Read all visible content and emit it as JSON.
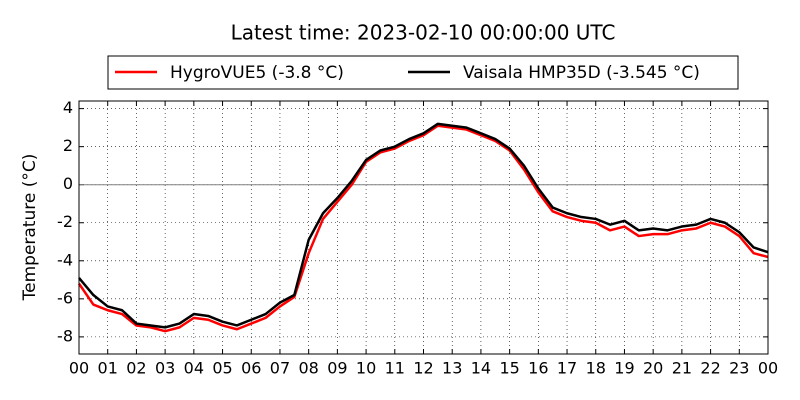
{
  "chart_data": {
    "type": "line",
    "title": "Latest time: 2023-02-10 00:00:00 UTC",
    "ylabel": "Temperature (°C)",
    "x": [
      0,
      0.5,
      1,
      1.5,
      2,
      2.5,
      3,
      3.5,
      4,
      4.5,
      5,
      5.5,
      6,
      6.5,
      7,
      7.5,
      8,
      8.5,
      9,
      9.5,
      10,
      10.5,
      11,
      11.5,
      12,
      12.5,
      13,
      13.5,
      14,
      14.5,
      15,
      15.5,
      16,
      16.5,
      17,
      17.5,
      18,
      18.5,
      19,
      19.5,
      20,
      20.5,
      21,
      21.5,
      22,
      22.5,
      23,
      23.5,
      24
    ],
    "series": [
      {
        "name": "HygroVUE5 (-3.8 °C)",
        "color": "#ff0000",
        "values": [
          -5.2,
          -6.3,
          -6.6,
          -6.8,
          -7.4,
          -7.5,
          -7.7,
          -7.5,
          -7.0,
          -7.1,
          -7.4,
          -7.6,
          -7.3,
          -7.0,
          -6.4,
          -5.9,
          -3.6,
          -1.8,
          -0.9,
          0.0,
          1.2,
          1.7,
          1.9,
          2.3,
          2.6,
          3.1,
          3.0,
          2.9,
          2.6,
          2.3,
          1.8,
          0.8,
          -0.4,
          -1.4,
          -1.7,
          -1.9,
          -2.0,
          -2.4,
          -2.2,
          -2.7,
          -2.6,
          -2.6,
          -2.4,
          -2.3,
          -2.0,
          -2.2,
          -2.7,
          -3.6,
          -3.8
        ]
      },
      {
        "name": "Vaisala HMP35D (-3.545 °C)",
        "color": "#000000",
        "values": [
          -4.9,
          -5.8,
          -6.4,
          -6.6,
          -7.3,
          -7.4,
          -7.5,
          -7.3,
          -6.8,
          -6.9,
          -7.2,
          -7.4,
          -7.1,
          -6.8,
          -6.2,
          -5.8,
          -2.9,
          -1.5,
          -0.7,
          0.2,
          1.3,
          1.8,
          2.0,
          2.4,
          2.7,
          3.2,
          3.1,
          3.0,
          2.7,
          2.4,
          1.9,
          1.0,
          -0.2,
          -1.2,
          -1.5,
          -1.7,
          -1.8,
          -2.1,
          -1.9,
          -2.4,
          -2.3,
          -2.4,
          -2.2,
          -2.1,
          -1.8,
          -2.0,
          -2.5,
          -3.3,
          -3.545
        ]
      }
    ],
    "xlim": [
      0,
      24
    ],
    "xticks": [
      {
        "value": 0,
        "label": "00"
      },
      {
        "value": 1,
        "label": "01"
      },
      {
        "value": 2,
        "label": "02"
      },
      {
        "value": 3,
        "label": "03"
      },
      {
        "value": 4,
        "label": "04"
      },
      {
        "value": 5,
        "label": "05"
      },
      {
        "value": 6,
        "label": "06"
      },
      {
        "value": 7,
        "label": "07"
      },
      {
        "value": 8,
        "label": "08"
      },
      {
        "value": 9,
        "label": "09"
      },
      {
        "value": 10,
        "label": "10"
      },
      {
        "value": 11,
        "label": "11"
      },
      {
        "value": 12,
        "label": "12"
      },
      {
        "value": 13,
        "label": "13"
      },
      {
        "value": 14,
        "label": "14"
      },
      {
        "value": 15,
        "label": "15"
      },
      {
        "value": 16,
        "label": "16"
      },
      {
        "value": 17,
        "label": "17"
      },
      {
        "value": 18,
        "label": "18"
      },
      {
        "value": 19,
        "label": "19"
      },
      {
        "value": 20,
        "label": "20"
      },
      {
        "value": 21,
        "label": "21"
      },
      {
        "value": 22,
        "label": "22"
      },
      {
        "value": 23,
        "label": "23"
      },
      {
        "value": 24,
        "label": "00"
      }
    ],
    "ylim": [
      -8.9,
      4.4
    ],
    "yticks": [
      -8,
      -6,
      -4,
      -2,
      0,
      2,
      4
    ],
    "hline": 0,
    "grid": true,
    "legend": "top"
  }
}
